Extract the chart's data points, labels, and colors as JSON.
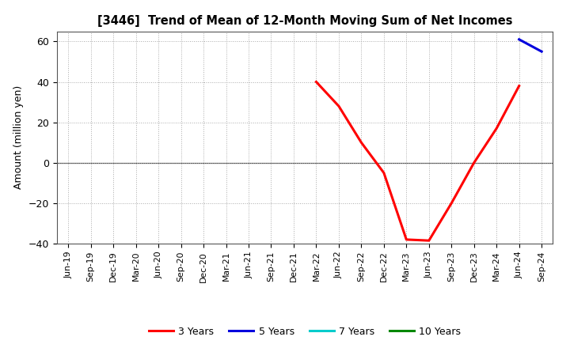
{
  "title": "[3446]  Trend of Mean of 12-Month Moving Sum of Net Incomes",
  "ylabel": "Amount (million yen)",
  "ylim": [
    -40,
    65
  ],
  "yticks": [
    -40,
    -20,
    0,
    20,
    40,
    60
  ],
  "background_color": "#ffffff",
  "grid_color": "#999999",
  "series": {
    "3years": {
      "color": "#ff0000",
      "label": "3 Years",
      "x": [
        11,
        12,
        13,
        14,
        15,
        16,
        17,
        18,
        19,
        20,
        21
      ],
      "y": [
        40,
        28,
        10,
        -5,
        -38,
        -38.5,
        -20,
        0,
        17,
        38,
        null
      ]
    },
    "5years": {
      "color": "#0000dd",
      "label": "5 Years",
      "x": [
        20,
        21
      ],
      "y": [
        61,
        55
      ]
    },
    "7years": {
      "color": "#00cccc",
      "label": "7 Years",
      "x": [],
      "y": []
    },
    "10years": {
      "color": "#008800",
      "label": "10 Years",
      "x": [],
      "y": []
    }
  },
  "xtick_labels": [
    "Jun-19",
    "Sep-19",
    "Dec-19",
    "Mar-20",
    "Jun-20",
    "Sep-20",
    "Dec-20",
    "Mar-21",
    "Jun-21",
    "Sep-21",
    "Dec-21",
    "Mar-22",
    "Jun-22",
    "Sep-22",
    "Dec-22",
    "Mar-23",
    "Jun-23",
    "Sep-23",
    "Dec-23",
    "Mar-24",
    "Jun-24",
    "Sep-24"
  ],
  "n_ticks": 22,
  "legend_entries": [
    "3 Years",
    "5 Years",
    "7 Years",
    "10 Years"
  ],
  "legend_colors": [
    "#ff0000",
    "#0000dd",
    "#00cccc",
    "#008800"
  ]
}
